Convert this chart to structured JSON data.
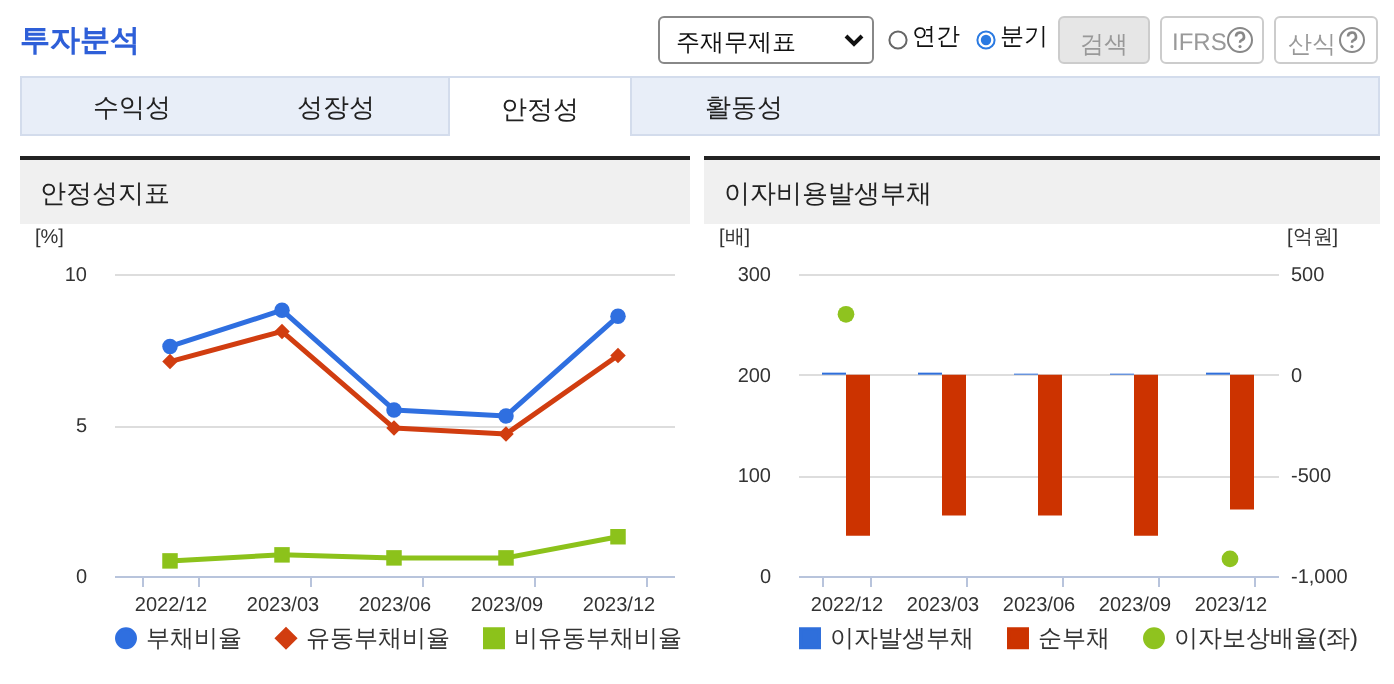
{
  "chart_data": [
    {
      "type": "other",
      "title": "투자분석",
      "annotations": [
        "주재무제표",
        "연간",
        "분기",
        "검색",
        "IFRS",
        "산식",
        "수익성",
        "성장성",
        "안정성",
        "활동성"
      ]
    },
    {
      "type": "line",
      "title": "안정성지표",
      "ylabel": "[%]",
      "categories": [
        "2022/12",
        "2023/03",
        "2023/06",
        "2023/09",
        "2023/12"
      ],
      "ylim": [
        0,
        10
      ],
      "yticks": [
        0,
        5,
        10
      ],
      "grid": "y",
      "legend": "bottom",
      "line_style": "solid",
      "series": [
        {
          "name": "부채비율",
          "color": "#2f6fe0",
          "marker": "circle",
          "values": [
            7.6,
            8.8,
            5.5,
            5.3,
            8.6
          ]
        },
        {
          "name": "유동부채비율",
          "color": "#d13d10",
          "marker": "diamond",
          "values": [
            7.1,
            8.1,
            4.9,
            4.7,
            7.3
          ]
        },
        {
          "name": "비유동부채비율",
          "color": "#8cc21b",
          "marker": "square",
          "values": [
            0.5,
            0.7,
            0.6,
            0.6,
            1.3
          ]
        }
      ]
    },
    {
      "type": "bar",
      "title": "이자비용발생부채",
      "ylabel": "[배]",
      "y2label": "[억원]",
      "categories": [
        "2022/12",
        "2023/03",
        "2023/06",
        "2023/09",
        "2023/12"
      ],
      "ylim": [
        0,
        300
      ],
      "yticks": [
        0,
        100,
        200,
        300
      ],
      "y2lim": [
        -1000,
        500
      ],
      "y2ticks": [
        {
          "value": -1000,
          "label": "-1,000"
        },
        -500,
        0,
        500
      ],
      "grid": "y",
      "legend": "bottom",
      "series": [
        {
          "name": "이자발생부채",
          "color": "#2f6fdb",
          "axis": "y2",
          "values": [
            10,
            10,
            5,
            5,
            10
          ]
        },
        {
          "name": "순부채",
          "color": "#cc3300",
          "axis": "y2",
          "values": [
            -800,
            -700,
            -700,
            -800,
            -670
          ]
        },
        {
          "name": "이자보상배율(좌)",
          "type": "scatter",
          "marker": "circle",
          "color": "#8fc31f",
          "values": [
            260,
            null,
            null,
            null,
            17
          ]
        }
      ]
    }
  ]
}
